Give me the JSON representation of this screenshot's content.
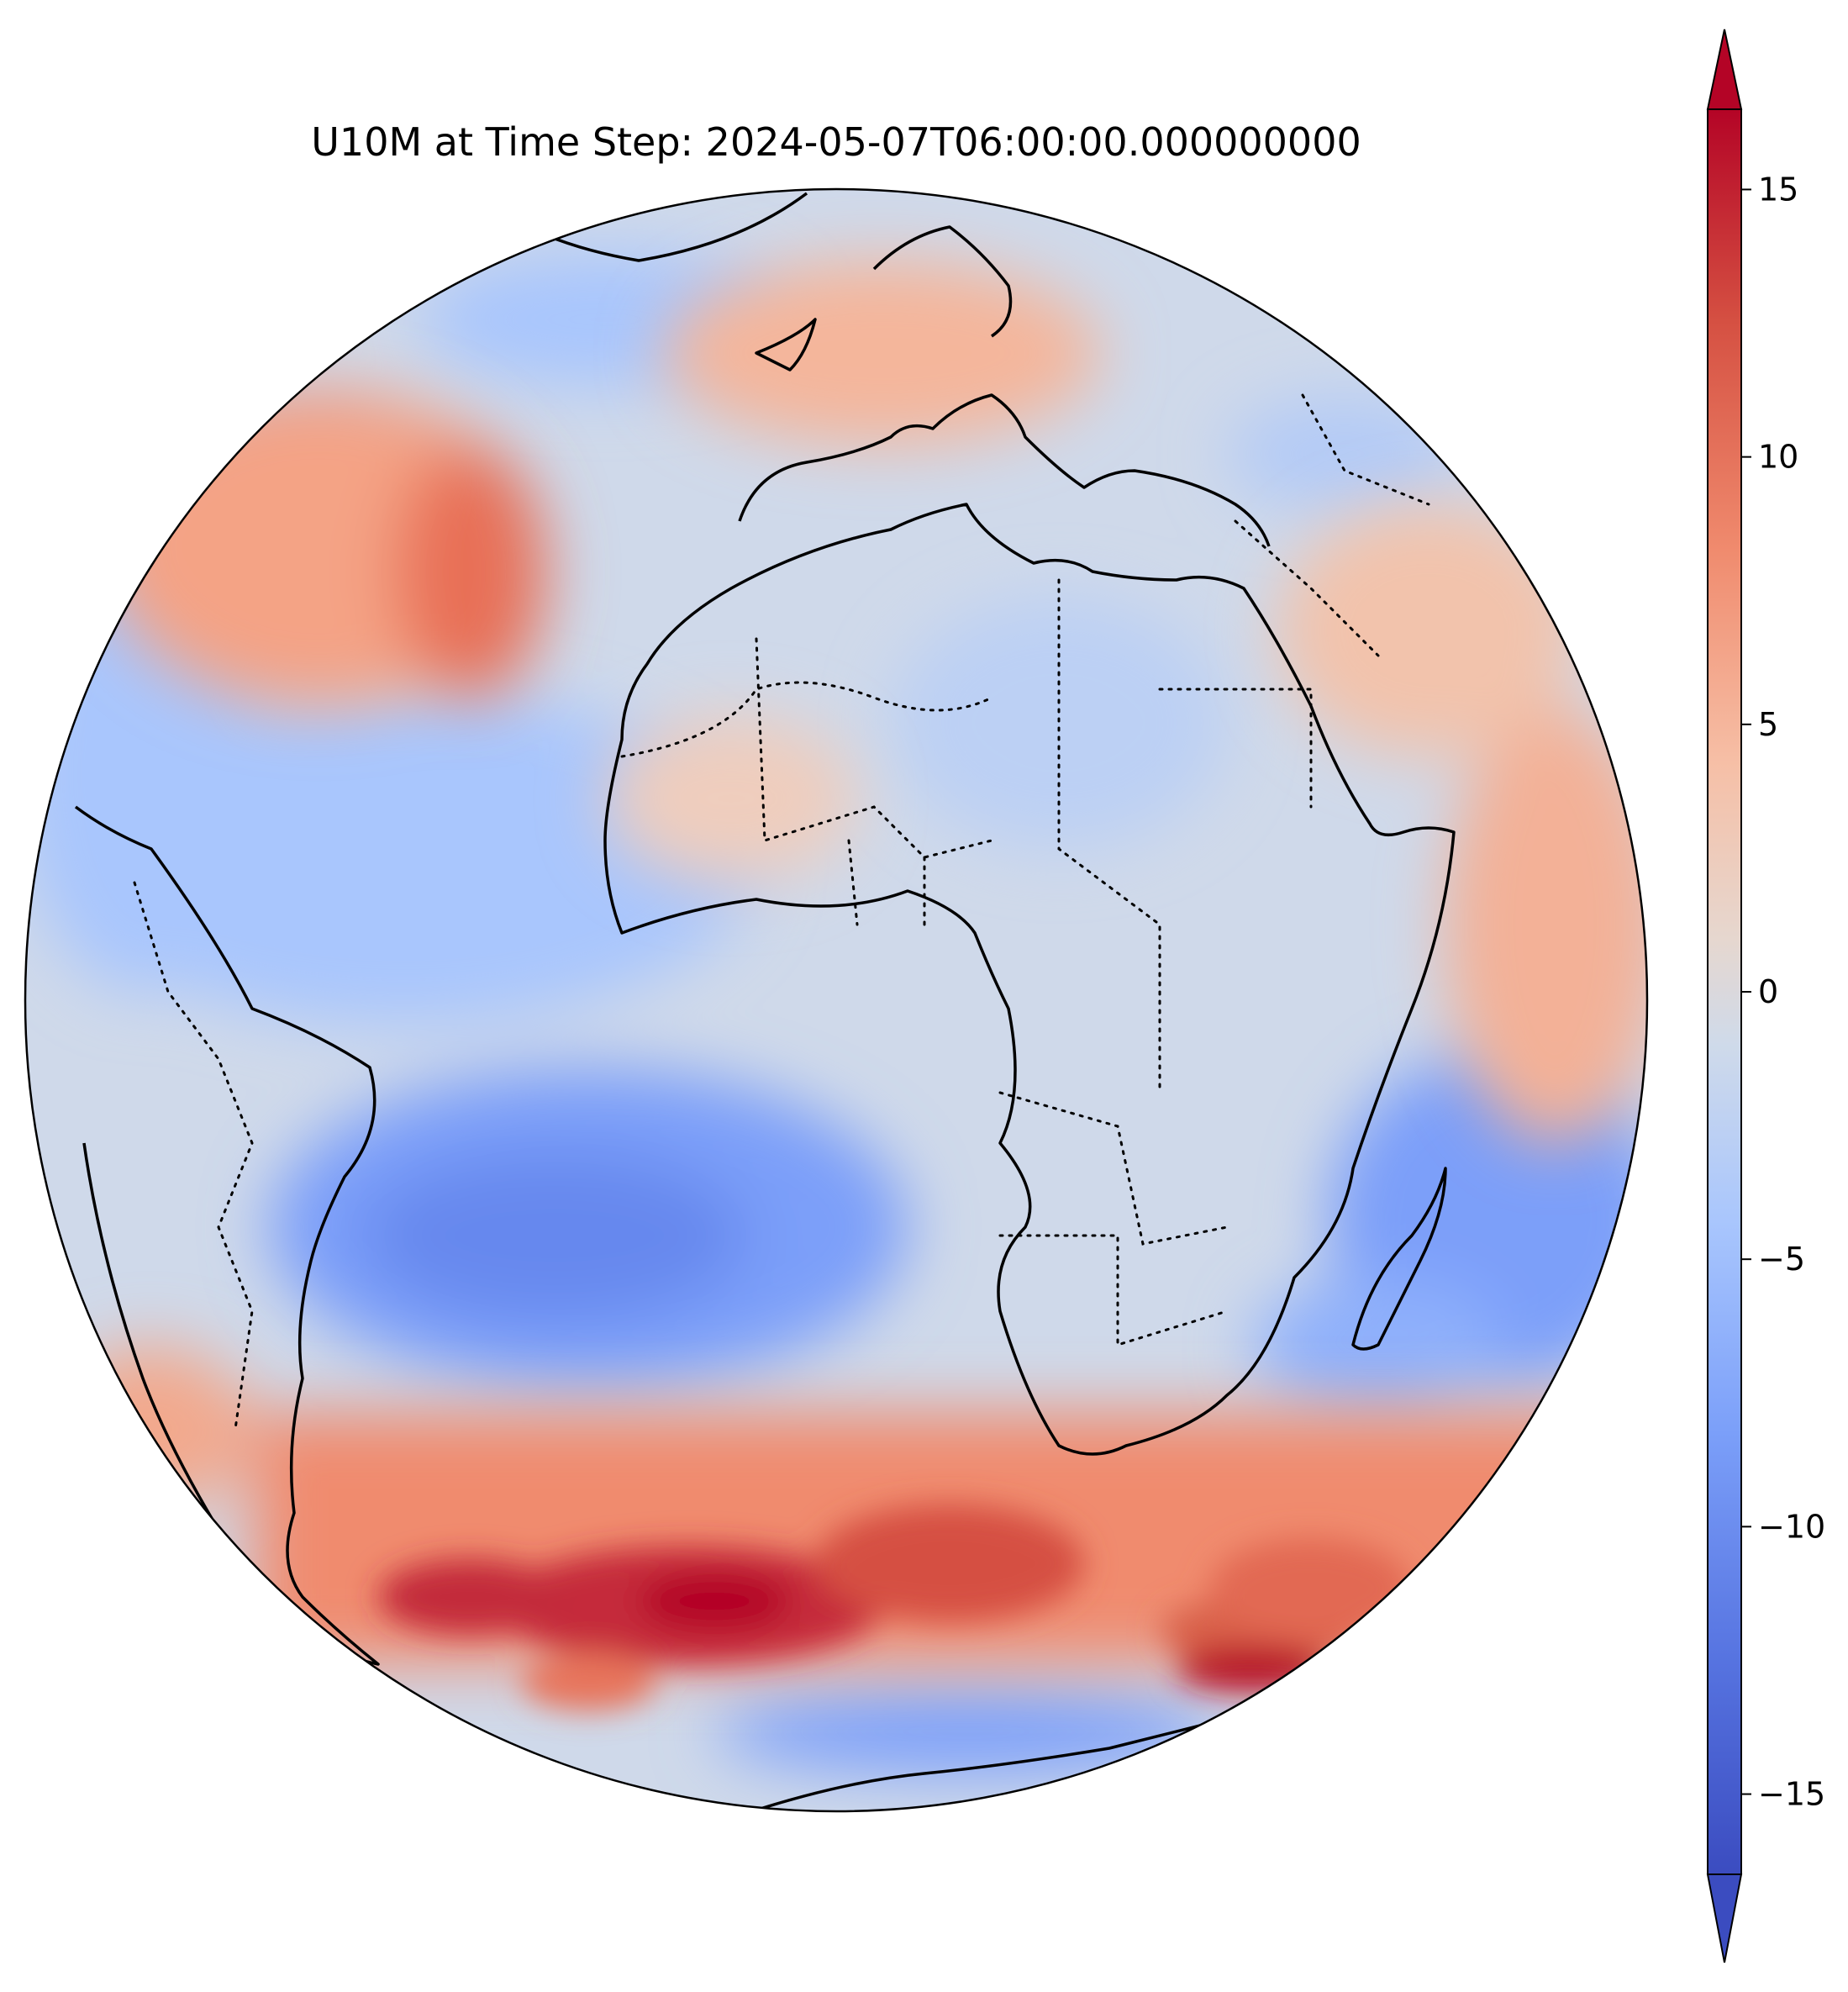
{
  "title": "U10M at Time Step: 2024-05-07T06:00:00.000000000",
  "chart_data": {
    "type": "heatmap",
    "projection": "orthographic",
    "variable": "U10M",
    "time_step": "2024-05-07T06:00:00.000000000",
    "colormap": "coolwarm",
    "colorbar": {
      "range": [
        -16.5,
        16.5
      ],
      "extend": "both",
      "ticks": [
        {
          "value": 15,
          "label": "15"
        },
        {
          "value": 10,
          "label": "10"
        },
        {
          "value": 5,
          "label": "5"
        },
        {
          "value": 0,
          "label": "0"
        },
        {
          "value": -5,
          "label": "−5"
        },
        {
          "value": -10,
          "label": "−10"
        },
        {
          "value": -15,
          "label": "−15"
        }
      ]
    }
  },
  "colors": {
    "min": "#3b4cc0",
    "neutral": "#dddcdc",
    "max": "#b40426",
    "coast": "#000000"
  }
}
